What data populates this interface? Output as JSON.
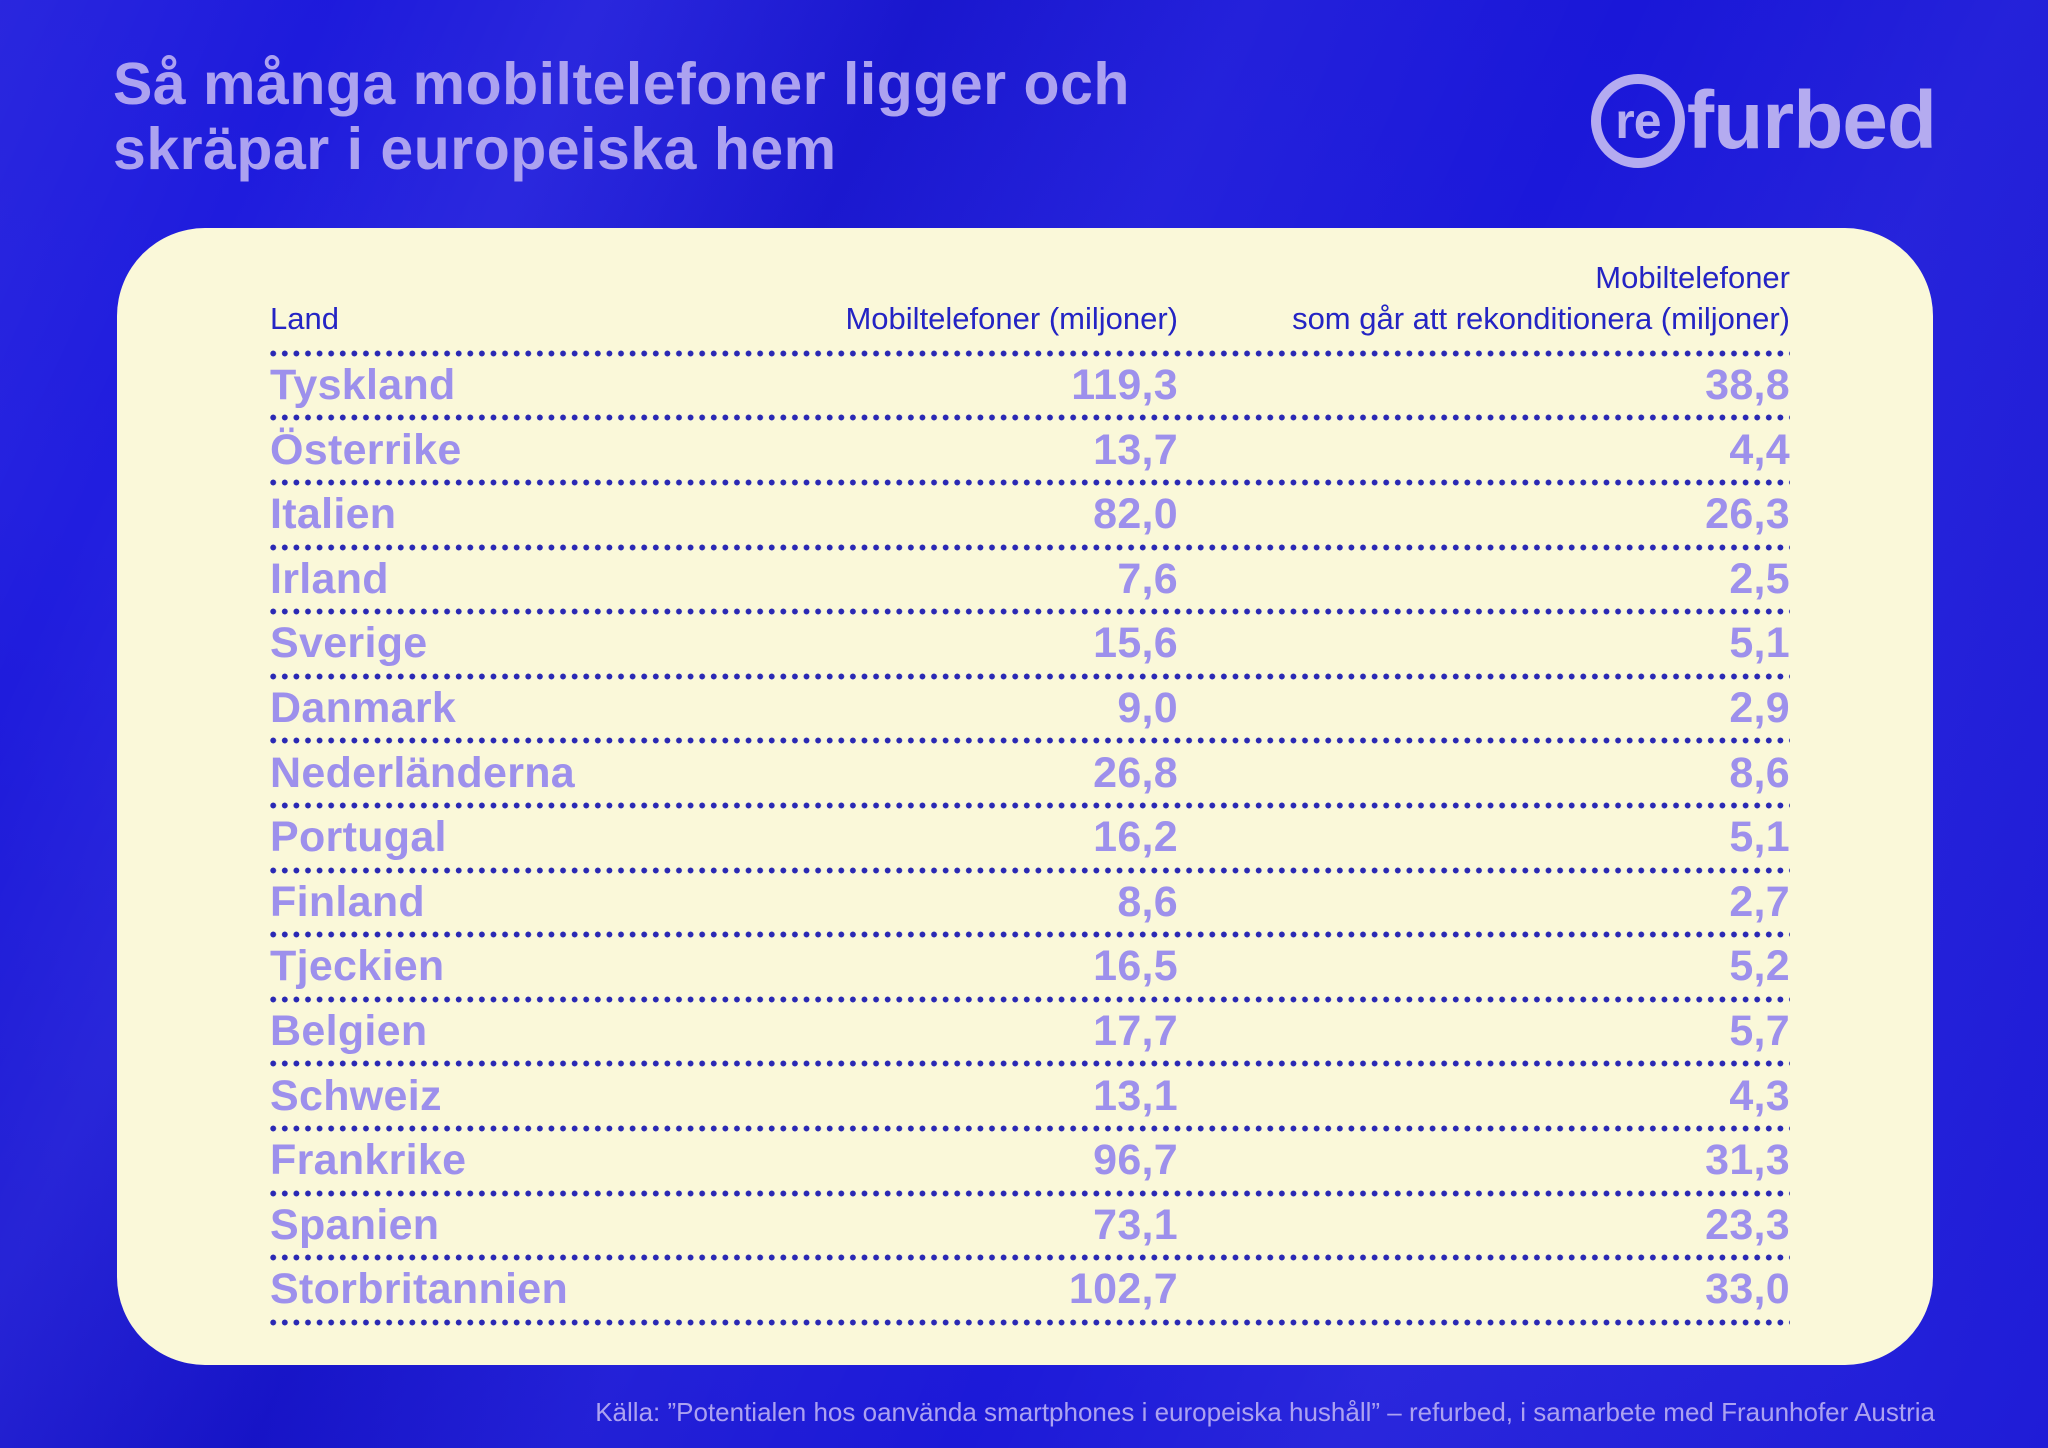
{
  "title": {
    "line1": "Så många mobiltelefoner ligger och",
    "line2": "skräpar i europeiska hem"
  },
  "logo": {
    "circle_text": "re",
    "rest_text": "furbed"
  },
  "table": {
    "headers": {
      "col1": "Land",
      "col2": "Mobiltelefoner (miljoner)",
      "col3_line1": "Mobiltelefoner",
      "col3_line2": "som går att rekonditionera (miljoner)"
    },
    "rows": [
      {
        "land": "Tyskland",
        "mobiltelefoner": "119,3",
        "rekonditionera": "38,8"
      },
      {
        "land": "Österrike",
        "mobiltelefoner": "13,7",
        "rekonditionera": "4,4"
      },
      {
        "land": "Italien",
        "mobiltelefoner": "82,0",
        "rekonditionera": "26,3"
      },
      {
        "land": "Irland",
        "mobiltelefoner": "7,6",
        "rekonditionera": "2,5"
      },
      {
        "land": "Sverige",
        "mobiltelefoner": "15,6",
        "rekonditionera": "5,1"
      },
      {
        "land": "Danmark",
        "mobiltelefoner": "9,0",
        "rekonditionera": "2,9"
      },
      {
        "land": "Nederländerna",
        "mobiltelefoner": "26,8",
        "rekonditionera": "8,6"
      },
      {
        "land": "Portugal",
        "mobiltelefoner": "16,2",
        "rekonditionera": "5,1"
      },
      {
        "land": "Finland",
        "mobiltelefoner": "8,6",
        "rekonditionera": "2,7"
      },
      {
        "land": "Tjeckien",
        "mobiltelefoner": "16,5",
        "rekonditionera": "5,2"
      },
      {
        "land": "Belgien",
        "mobiltelefoner": "17,7",
        "rekonditionera": "5,7"
      },
      {
        "land": "Schweiz",
        "mobiltelefoner": "13,1",
        "rekonditionera": "4,3"
      },
      {
        "land": "Frankrike",
        "mobiltelefoner": "96,7",
        "rekonditionera": "31,3"
      },
      {
        "land": "Spanien",
        "mobiltelefoner": "73,1",
        "rekonditionera": "23,3"
      },
      {
        "land": "Storbritannien",
        "mobiltelefoner": "102,7",
        "rekonditionera": "33,0"
      }
    ]
  },
  "footer": {
    "source": "Källa: ”Potentialen hos oanvända smartphones i europeiska hushåll” – refurbed, i samarbete med Fraunhofer Austria"
  },
  "colors": {
    "background": "#1a17de",
    "card": "#faf8d9",
    "lavender_text": "#9d90ec",
    "title_text": "#aca2f0",
    "logo_text": "#b4abf0",
    "dark_blue_text": "#2424c4",
    "dot_color": "#2a29b4"
  },
  "chart_data": {
    "type": "table",
    "title": "Så många mobiltelefoner ligger och skräpar i europeiska hem",
    "columns": [
      "Land",
      "Mobiltelefoner (miljoner)",
      "Mobiltelefoner som går att rekonditionera (miljoner)"
    ],
    "rows": [
      [
        "Tyskland",
        119.3,
        38.8
      ],
      [
        "Österrike",
        13.7,
        4.4
      ],
      [
        "Italien",
        82.0,
        26.3
      ],
      [
        "Irland",
        7.6,
        2.5
      ],
      [
        "Sverige",
        15.6,
        5.1
      ],
      [
        "Danmark",
        9.0,
        2.9
      ],
      [
        "Nederländerna",
        26.8,
        8.6
      ],
      [
        "Portugal",
        16.2,
        5.1
      ],
      [
        "Finland",
        8.6,
        2.7
      ],
      [
        "Tjeckien",
        16.5,
        5.2
      ],
      [
        "Belgien",
        17.7,
        5.7
      ],
      [
        "Schweiz",
        13.1,
        4.3
      ],
      [
        "Frankrike",
        96.7,
        31.3
      ],
      [
        "Spanien",
        73.1,
        23.3
      ],
      [
        "Storbritannien",
        102.7,
        33.0
      ]
    ],
    "source": "Källa: ”Potentialen hos oanvända smartphones i europeiska hushåll” – refurbed, i samarbete med Fraunhofer Austria"
  }
}
